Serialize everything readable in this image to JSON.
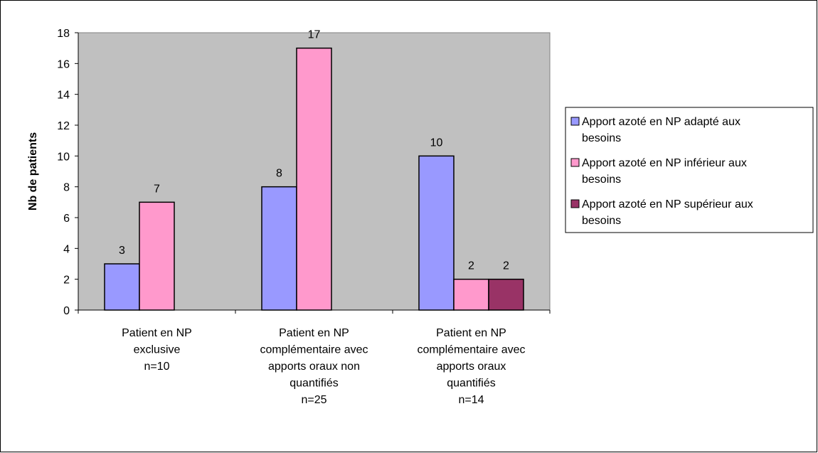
{
  "chart_data": {
    "type": "bar",
    "title": "",
    "xlabel": "",
    "ylabel": "Nb de patients",
    "ylim": [
      0,
      18
    ],
    "yticks": [
      "0",
      "2",
      "4",
      "6",
      "8",
      "10",
      "12",
      "14",
      "16",
      "18"
    ],
    "grid": false,
    "legend_position": "right",
    "categories": [
      [
        "Patient en NP",
        "exclusive",
        "n=10"
      ],
      [
        "Patient en NP",
        "complémentaire avec",
        "apports oraux non",
        "quantifiés",
        "n=25"
      ],
      [
        "Patient en NP",
        "complémentaire avec",
        "apports oraux",
        "quantifiés",
        "n=14"
      ]
    ],
    "series": [
      {
        "name": "Apport azoté en NP adapté aux besoins",
        "legend_lines": [
          "Apport azoté en NP adapté aux",
          "besoins"
        ],
        "color": "#9999ff",
        "values": [
          3,
          8,
          10
        ]
      },
      {
        "name": "Apport azoté en NP inférieur aux besoins",
        "legend_lines": [
          "Apport azoté en NP inférieur aux",
          "besoins"
        ],
        "color": "#ff99cc",
        "values": [
          7,
          17,
          2
        ]
      },
      {
        "name": "Apport azoté en NP supérieur aux besoins",
        "legend_lines": [
          "Apport azoté en NP supérieur aux",
          "besoins"
        ],
        "color": "#993366",
        "values": [
          null,
          null,
          2
        ]
      }
    ],
    "plot_background": "#c0c0c0"
  }
}
